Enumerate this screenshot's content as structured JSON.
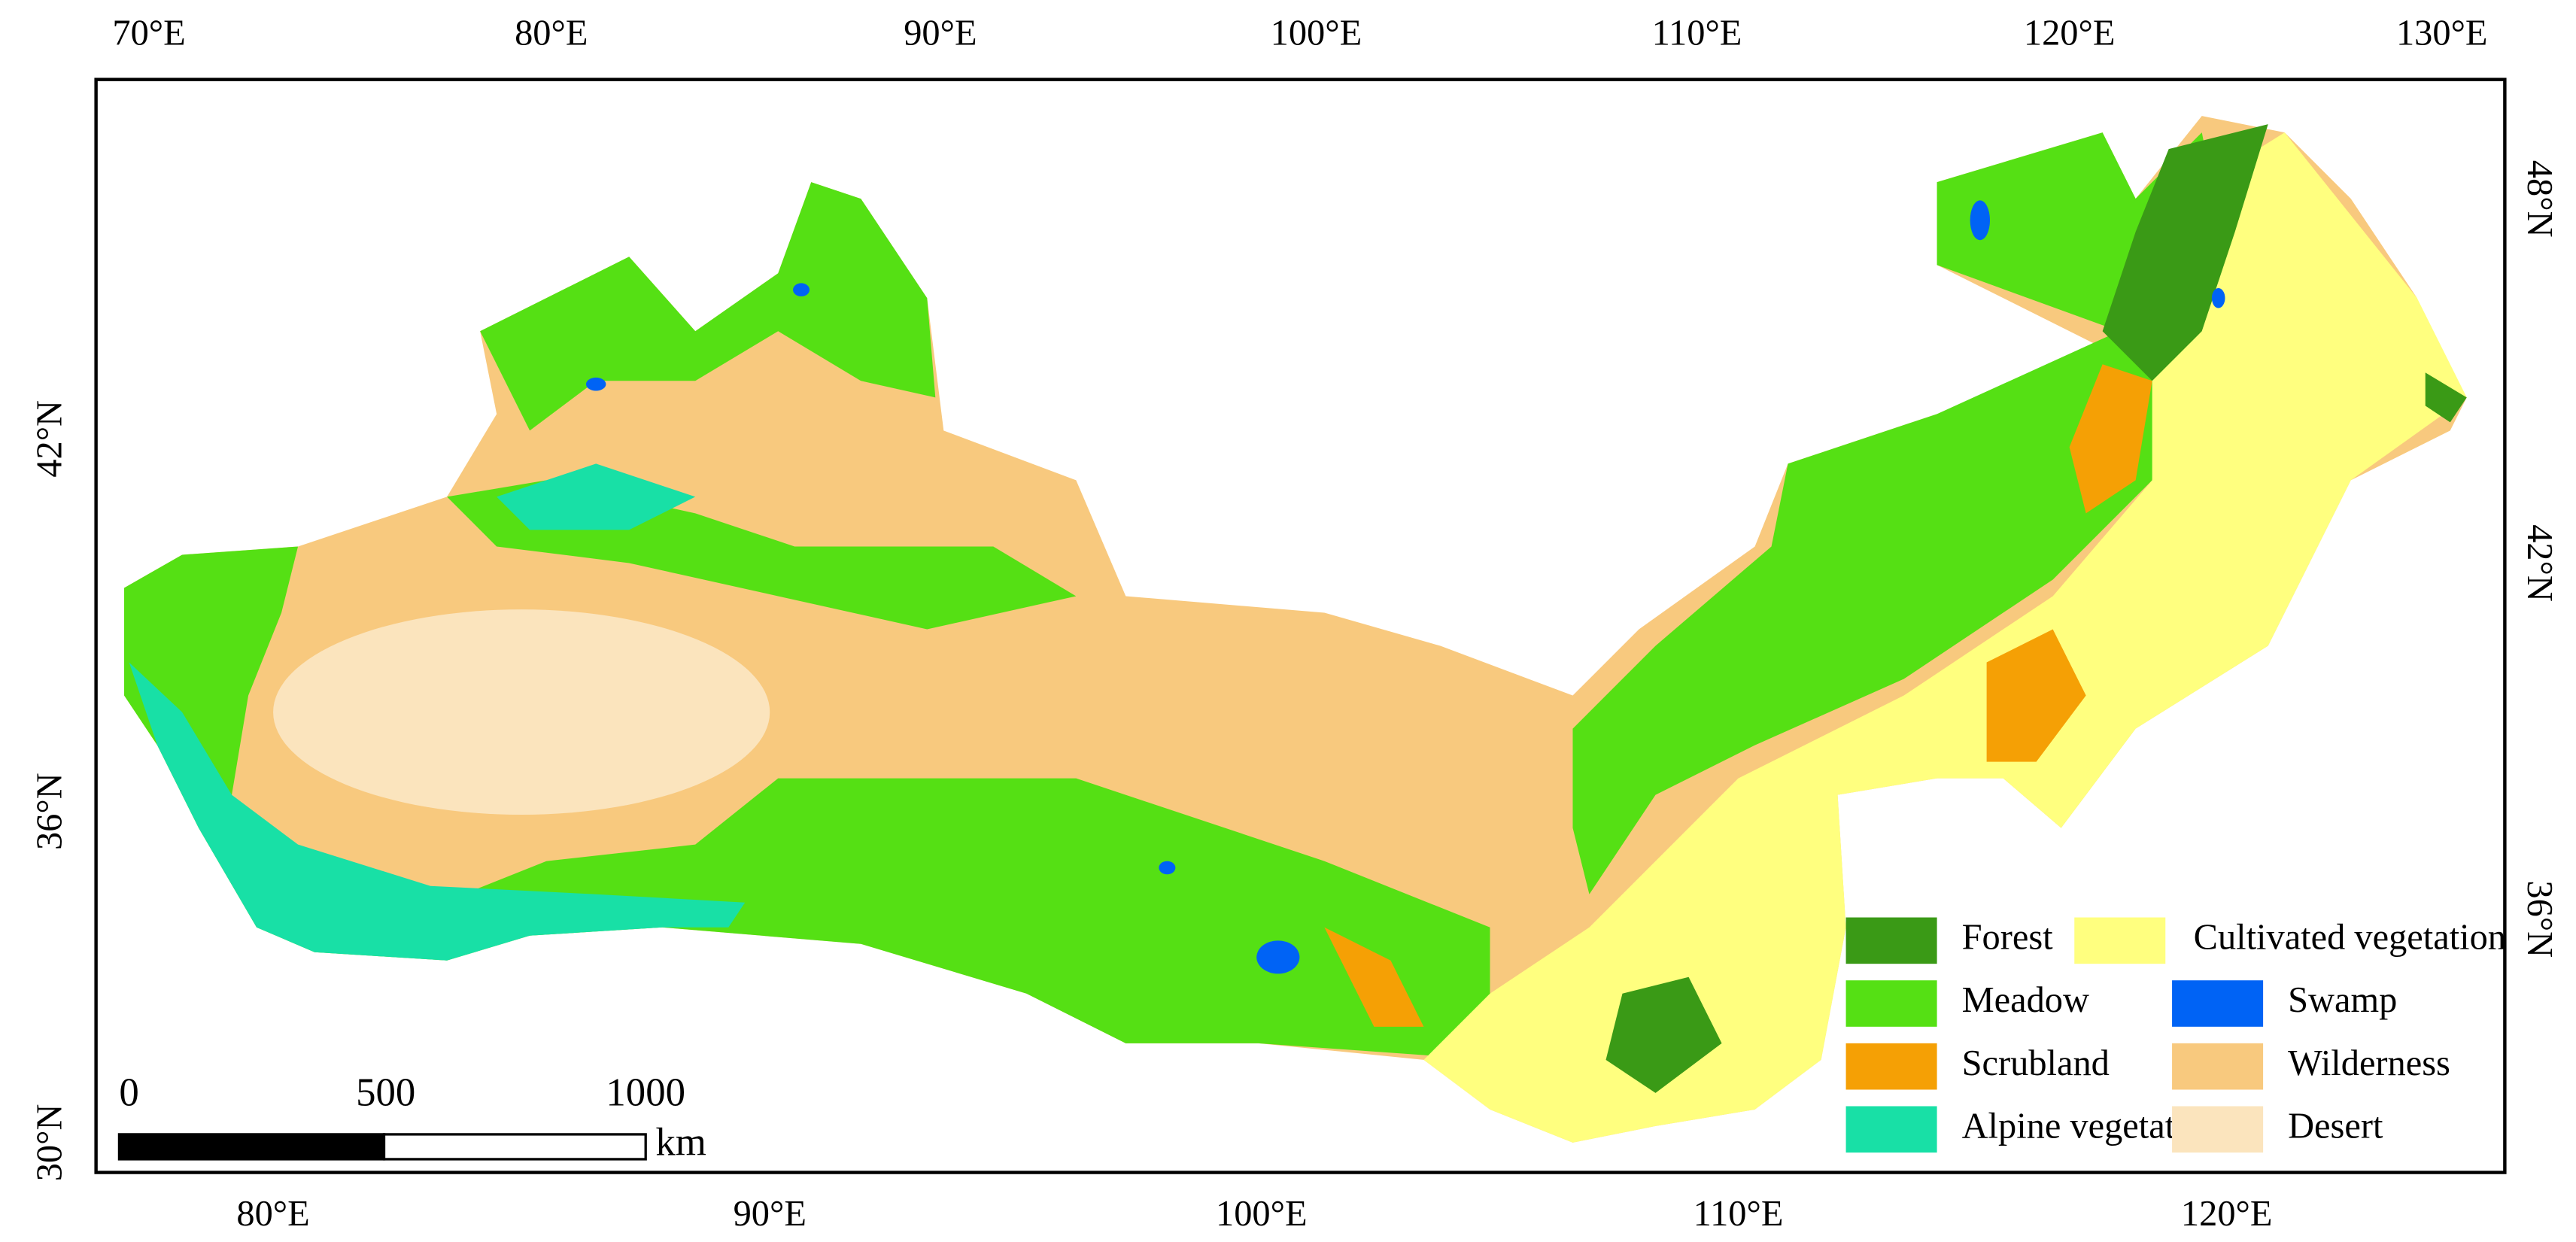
{
  "map": {
    "top_axis_labels": [
      "70°E",
      "80°E",
      "90°E",
      "100°E",
      "110°E",
      "120°E",
      "130°E"
    ],
    "bottom_axis_labels": [
      "80°E",
      "90°E",
      "100°E",
      "110°E",
      "120°E"
    ],
    "left_axis_labels": [
      "42°N",
      "36°N",
      "30°N"
    ],
    "right_axis_labels": [
      "48°N",
      "42°N",
      "36°N"
    ],
    "legend": [
      {
        "name": "Forest",
        "color": "#3a9a16"
      },
      {
        "name": "Cultivated vegetation",
        "color": "#ffff7f"
      },
      {
        "name": "Meadow",
        "color": "#55e014"
      },
      {
        "name": "Swamp",
        "color": "#0063f5"
      },
      {
        "name": "Scrubland",
        "color": "#f5a005"
      },
      {
        "name": "Wilderness",
        "color": "#f8c97e"
      },
      {
        "name": "Alpine vegetation",
        "color": "#18e0a6"
      },
      {
        "name": "Desert",
        "color": "#fbe4bd"
      }
    ],
    "scale_bar": {
      "labels": [
        "0",
        "500",
        "1000"
      ],
      "unit": "km"
    }
  }
}
